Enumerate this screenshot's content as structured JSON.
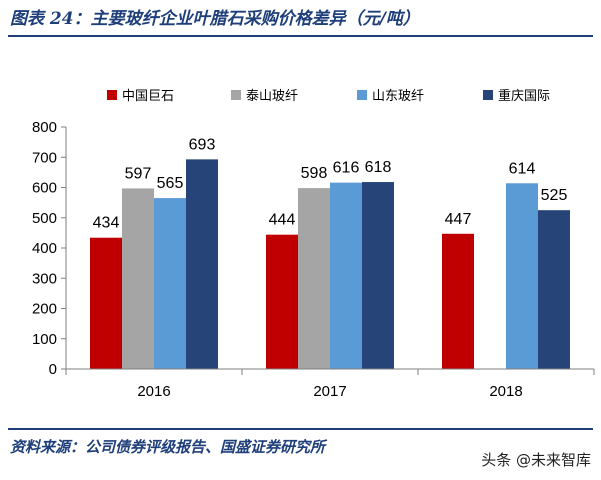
{
  "figure": {
    "title": "图表 24：主要玻纤企业叶腊石采购价格差异（元/吨）",
    "source": "资料来源：公司债券评级报告、国盛证券研究所",
    "watermark": "头条 @未来智库",
    "title_color": "#1f3f7a"
  },
  "chart_data": {
    "type": "bar",
    "title": "",
    "xlabel": "",
    "ylabel": "",
    "categories": [
      "2016",
      "2017",
      "2018"
    ],
    "ylim": [
      0,
      800
    ],
    "yticks": [
      0,
      100,
      200,
      300,
      400,
      500,
      600,
      700,
      800
    ],
    "grid": false,
    "legend_position": "top",
    "series": [
      {
        "name": "中国巨石",
        "color": "#c00000",
        "values": [
          434,
          444,
          447
        ]
      },
      {
        "name": "泰山玻纤",
        "color": "#a5a5a5",
        "values": [
          597,
          598,
          null
        ]
      },
      {
        "name": "山东玻纤",
        "color": "#5b9bd5",
        "values": [
          565,
          616,
          614
        ]
      },
      {
        "name": "重庆国际",
        "color": "#264478",
        "values": [
          693,
          618,
          525
        ]
      }
    ]
  }
}
